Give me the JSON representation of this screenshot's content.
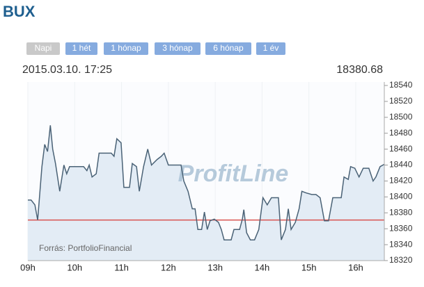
{
  "header": {
    "title": "BUX"
  },
  "buttons": [
    "Napi",
    "1 hét",
    "1 hónap",
    "3 hónap",
    "6 hónap",
    "1 év"
  ],
  "info": {
    "datetime": "2015.03.10. 17:25",
    "last_value": "18380.68"
  },
  "chart_data": {
    "type": "line",
    "watermark": "ProfitLine",
    "source": "Forrás: PortfolioFinancial",
    "color": "#4a6276",
    "fill": "#e3ecf5",
    "x": [
      9.0,
      9.07,
      9.15,
      9.21,
      9.3,
      9.36,
      9.42,
      9.48,
      9.53,
      9.59,
      9.68,
      9.77,
      9.83,
      9.89,
      10.01,
      10.07,
      10.19,
      10.26,
      10.31,
      10.37,
      10.46,
      10.52,
      10.6,
      10.78,
      10.84,
      10.9,
      10.99,
      11.05,
      11.17,
      11.23,
      11.32,
      11.38,
      11.47,
      11.56,
      11.64,
      11.76,
      11.85,
      11.91,
      12.0,
      12.15,
      12.27,
      12.33,
      12.42,
      12.51,
      12.57,
      12.63,
      12.71,
      12.77,
      12.83,
      12.89,
      12.98,
      13.07,
      13.13,
      13.19,
      13.34,
      13.4,
      13.52,
      13.58,
      13.61,
      13.67,
      13.75,
      13.84,
      13.93,
      14.02,
      14.11,
      14.2,
      14.35,
      14.41,
      14.5,
      14.56,
      14.62,
      14.71,
      14.79,
      14.85,
      14.94,
      15.06,
      15.15,
      15.24,
      15.33,
      15.42,
      15.51,
      15.69,
      15.75,
      15.84,
      15.89,
      15.98,
      16.07,
      16.16,
      16.28,
      16.37,
      16.43,
      16.52,
      16.61
    ],
    "values": [
      18396,
      18396,
      18390,
      18371,
      18438,
      18466,
      18457,
      18490,
      18460,
      18442,
      18407,
      18440,
      18429,
      18438,
      18438,
      18438,
      18438,
      18433,
      18440,
      18425,
      18429,
      18455,
      18455,
      18455,
      18451,
      18473,
      18468,
      18412,
      18412,
      18442,
      18438,
      18407,
      18438,
      18460,
      18440,
      18447,
      18451,
      18455,
      18440,
      18440,
      18440,
      18420,
      18407,
      18385,
      18385,
      18359,
      18359,
      18381,
      18359,
      18370,
      18372,
      18368,
      18359,
      18346,
      18346,
      18359,
      18359,
      18372,
      18384,
      18355,
      18346,
      18346,
      18359,
      18399,
      18390,
      18399,
      18399,
      18346,
      18359,
      18385,
      18359,
      18368,
      18385,
      18407,
      18405,
      18403,
      18403,
      18399,
      18370,
      18370,
      18399,
      18399,
      18425,
      18422,
      18438,
      18436,
      18425,
      18436,
      18436,
      18420,
      18425,
      18438,
      18441
    ],
    "reference_line": {
      "value": 18371,
      "color": "#d9534f"
    },
    "xlim": [
      9,
      16.61
    ],
    "xticks": [
      {
        "value": 9,
        "label": "09h"
      },
      {
        "value": 10,
        "label": "10h"
      },
      {
        "value": 11,
        "label": "11h"
      },
      {
        "value": 12,
        "label": "12h"
      },
      {
        "value": 13,
        "label": "13h"
      },
      {
        "value": 14,
        "label": "14h"
      },
      {
        "value": 15,
        "label": "15h"
      },
      {
        "value": 16,
        "label": "16h"
      }
    ],
    "ylim": [
      18320,
      18540
    ],
    "yticks": [
      18320,
      18340,
      18360,
      18380,
      18400,
      18420,
      18440,
      18460,
      18480,
      18500,
      18520,
      18540
    ],
    "grid": true
  }
}
